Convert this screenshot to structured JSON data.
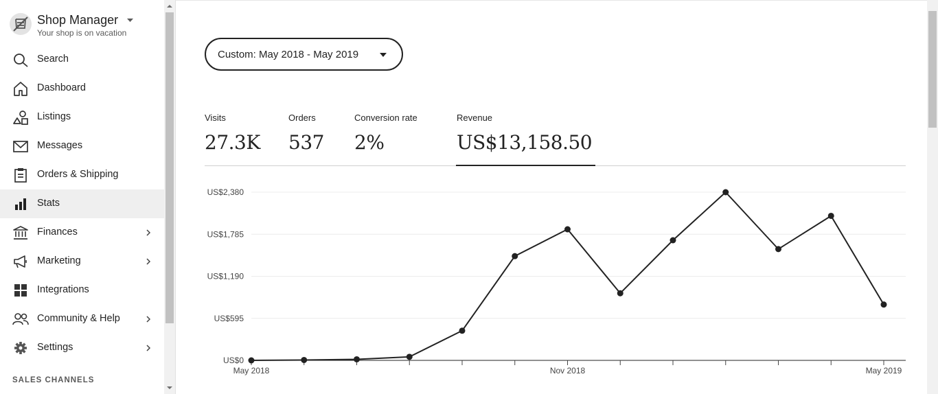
{
  "shop": {
    "title": "Shop Manager",
    "subtitle": "Your shop is on vacation"
  },
  "nav": [
    {
      "label": "Search",
      "icon": "search-icon",
      "chevron": false,
      "active": false
    },
    {
      "label": "Dashboard",
      "icon": "home-icon",
      "chevron": false,
      "active": false
    },
    {
      "label": "Listings",
      "icon": "shapes-icon",
      "chevron": false,
      "active": false
    },
    {
      "label": "Messages",
      "icon": "envelope-icon",
      "chevron": false,
      "active": false
    },
    {
      "label": "Orders & Shipping",
      "icon": "clipboard-icon",
      "chevron": false,
      "active": false
    },
    {
      "label": "Stats",
      "icon": "bar-chart-icon",
      "chevron": false,
      "active": true
    },
    {
      "label": "Finances",
      "icon": "bank-icon",
      "chevron": true,
      "active": false
    },
    {
      "label": "Marketing",
      "icon": "megaphone-icon",
      "chevron": true,
      "active": false
    },
    {
      "label": "Integrations",
      "icon": "grid-icon",
      "chevron": false,
      "active": false
    },
    {
      "label": "Community & Help",
      "icon": "people-icon",
      "chevron": true,
      "active": false
    },
    {
      "label": "Settings",
      "icon": "gear-icon",
      "chevron": true,
      "active": false
    }
  ],
  "sales_channels_label": "SALES CHANNELS",
  "date_range": {
    "label": "Custom: May 2018 - May 2019"
  },
  "metrics": {
    "visits": {
      "label": "Visits",
      "value": "27.3K"
    },
    "orders": {
      "label": "Orders",
      "value": "537"
    },
    "conversion": {
      "label": "Conversion rate",
      "value": "2%"
    },
    "revenue": {
      "label": "Revenue",
      "value": "US$13,158.50"
    }
  },
  "colors": {
    "line": "#222222",
    "grid": "#ececec",
    "active_nav": "#efefef"
  },
  "chart_data": {
    "type": "line",
    "title": "",
    "xlabel": "",
    "ylabel": "",
    "x": [
      "May 2018",
      "Jun 2018",
      "Jul 2018",
      "Aug 2018",
      "Sep 2018",
      "Oct 2018",
      "Nov 2018",
      "Dec 2018",
      "Jan 2019",
      "Feb 2019",
      "Mar 2019",
      "Apr 2019",
      "May 2019"
    ],
    "x_tick_labels": [
      {
        "index": 0,
        "label": "May 2018"
      },
      {
        "index": 6,
        "label": "Nov 2018"
      },
      {
        "index": 12,
        "label": "May 2019"
      }
    ],
    "y_ticks": [
      {
        "value": 0,
        "label": "US$0"
      },
      {
        "value": 595,
        "label": "US$595"
      },
      {
        "value": 1190,
        "label": "US$1,190"
      },
      {
        "value": 1785,
        "label": "US$1,785"
      },
      {
        "value": 2380,
        "label": "US$2,380"
      }
    ],
    "ylim": [
      0,
      2380
    ],
    "grid": true,
    "legend": "none",
    "series": [
      {
        "values": [
          0,
          5,
          15,
          50,
          420,
          1475,
          1855,
          950,
          1700,
          2380,
          1575,
          2045,
          790
        ]
      }
    ]
  }
}
